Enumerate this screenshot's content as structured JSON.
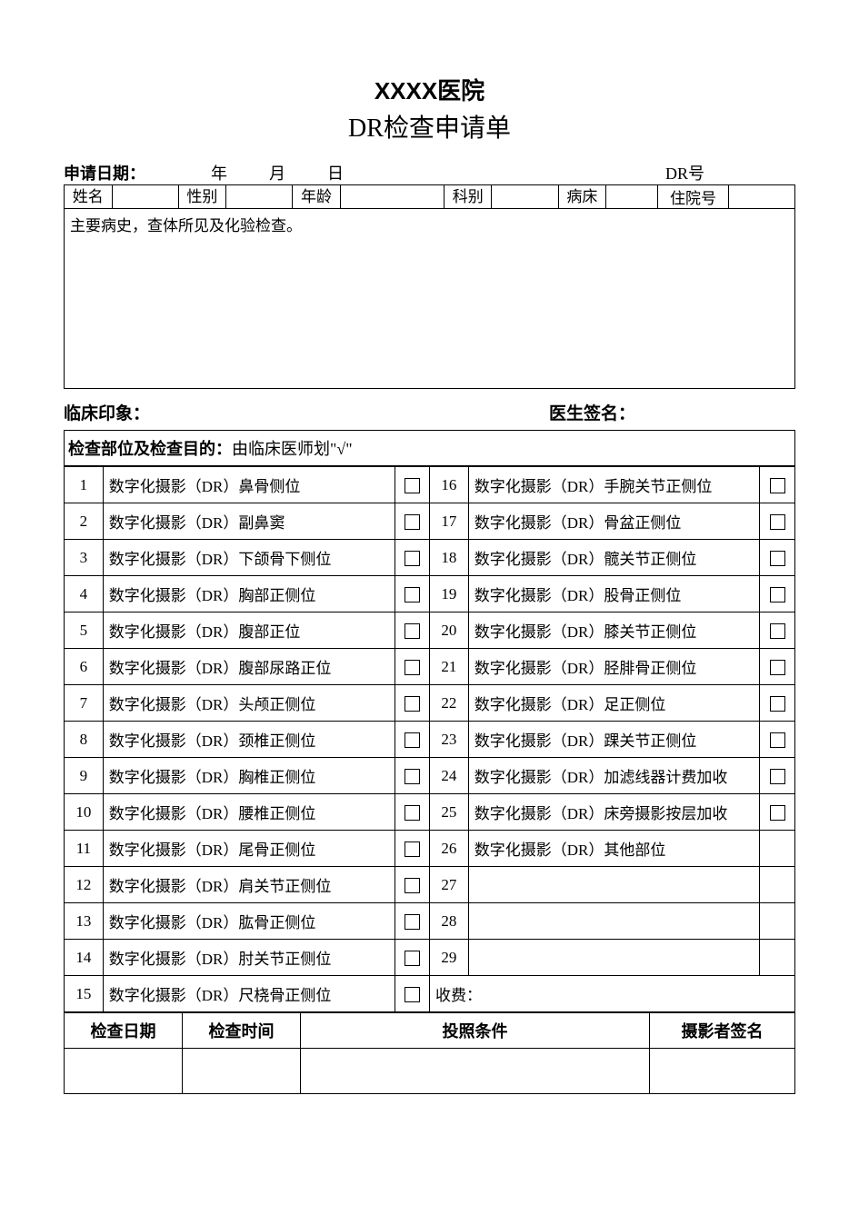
{
  "header": {
    "hospital_name": "XXXX医院",
    "form_title": "DR检查申请单"
  },
  "date_row": {
    "label": "申请日期：",
    "year_unit": "年",
    "month_unit": "月",
    "day_unit": "日",
    "dr_label": "DR号"
  },
  "patient": {
    "name_label": "姓名",
    "gender_label": "性别",
    "age_label": "年龄",
    "dept_label": "科别",
    "bed_label": "病床",
    "inpatient_label": "住院号",
    "name_value": "",
    "gender_value": "",
    "age_value": "",
    "dept_value": "",
    "bed_value": "",
    "inpatient_value": ""
  },
  "history": {
    "text": "主要病史，查体所见及化验检查。"
  },
  "impression": {
    "left_label": "临床印象：",
    "right_label": "医生签名："
  },
  "section": {
    "bold_part": "检查部位及检查目的：",
    "rest_part": "由临床医师划\"√\""
  },
  "exams": {
    "left": [
      {
        "n": "1",
        "t": "数字化摄影（DR）鼻骨侧位",
        "cb": true
      },
      {
        "n": "2",
        "t": "数字化摄影（DR）副鼻窦",
        "cb": true
      },
      {
        "n": "3",
        "t": "数字化摄影（DR）下颌骨下侧位",
        "cb": true
      },
      {
        "n": "4",
        "t": "数字化摄影（DR）胸部正侧位",
        "cb": true
      },
      {
        "n": "5",
        "t": "数字化摄影（DR）腹部正位",
        "cb": true
      },
      {
        "n": "6",
        "t": "数字化摄影（DR）腹部尿路正位",
        "cb": true
      },
      {
        "n": "7",
        "t": "数字化摄影（DR）头颅正侧位",
        "cb": true
      },
      {
        "n": "8",
        "t": "数字化摄影（DR）颈椎正侧位",
        "cb": true
      },
      {
        "n": "9",
        "t": "数字化摄影（DR）胸椎正侧位",
        "cb": true
      },
      {
        "n": "10",
        "t": "数字化摄影（DR）腰椎正侧位",
        "cb": true
      },
      {
        "n": "11",
        "t": "数字化摄影（DR）尾骨正侧位",
        "cb": true
      },
      {
        "n": "12",
        "t": "数字化摄影（DR）肩关节正侧位",
        "cb": true
      },
      {
        "n": "13",
        "t": "数字化摄影（DR）肱骨正侧位",
        "cb": true
      },
      {
        "n": "14",
        "t": "数字化摄影（DR）肘关节正侧位",
        "cb": true
      },
      {
        "n": "15",
        "t": "数字化摄影（DR）尺桡骨正侧位",
        "cb": true
      }
    ],
    "right": [
      {
        "n": "16",
        "t": "数字化摄影（DR）手腕关节正侧位",
        "cb": true
      },
      {
        "n": "17",
        "t": "数字化摄影（DR）骨盆正侧位",
        "cb": true
      },
      {
        "n": "18",
        "t": "数字化摄影（DR）髋关节正侧位",
        "cb": true
      },
      {
        "n": "19",
        "t": "数字化摄影（DR）股骨正侧位",
        "cb": true
      },
      {
        "n": "20",
        "t": "数字化摄影（DR）膝关节正侧位",
        "cb": true
      },
      {
        "n": "21",
        "t": "数字化摄影（DR）胫腓骨正侧位",
        "cb": true
      },
      {
        "n": "22",
        "t": "数字化摄影（DR）足正侧位",
        "cb": true
      },
      {
        "n": "23",
        "t": "数字化摄影（DR）踝关节正侧位",
        "cb": true
      },
      {
        "n": "24",
        "t": "数字化摄影（DR）加滤线器计费加收",
        "cb": true
      },
      {
        "n": "25",
        "t": "数字化摄影（DR）床旁摄影按层加收",
        "cb": true
      },
      {
        "n": "26",
        "t": "数字化摄影（DR）其他部位",
        "cb": false
      },
      {
        "n": "27",
        "t": "",
        "cb": false
      },
      {
        "n": "28",
        "t": "",
        "cb": false
      },
      {
        "n": "29",
        "t": "",
        "cb": false
      },
      {
        "n": "",
        "t": "收费：",
        "cb": false,
        "fee": true
      }
    ]
  },
  "footer": {
    "col1": "检查日期",
    "col2": "检查时间",
    "col3": "投照条件",
    "col4": "摄影者签名",
    "val1": "",
    "val2": "",
    "val3": "",
    "val4": ""
  },
  "style": {
    "page_bg": "#ffffff",
    "text_color": "#000000",
    "border_color": "#000000",
    "title_fontsize": 26,
    "subtitle_fontsize": 28,
    "body_fontsize": 17,
    "label_fontsize": 18,
    "checkbox_size": 17
  }
}
